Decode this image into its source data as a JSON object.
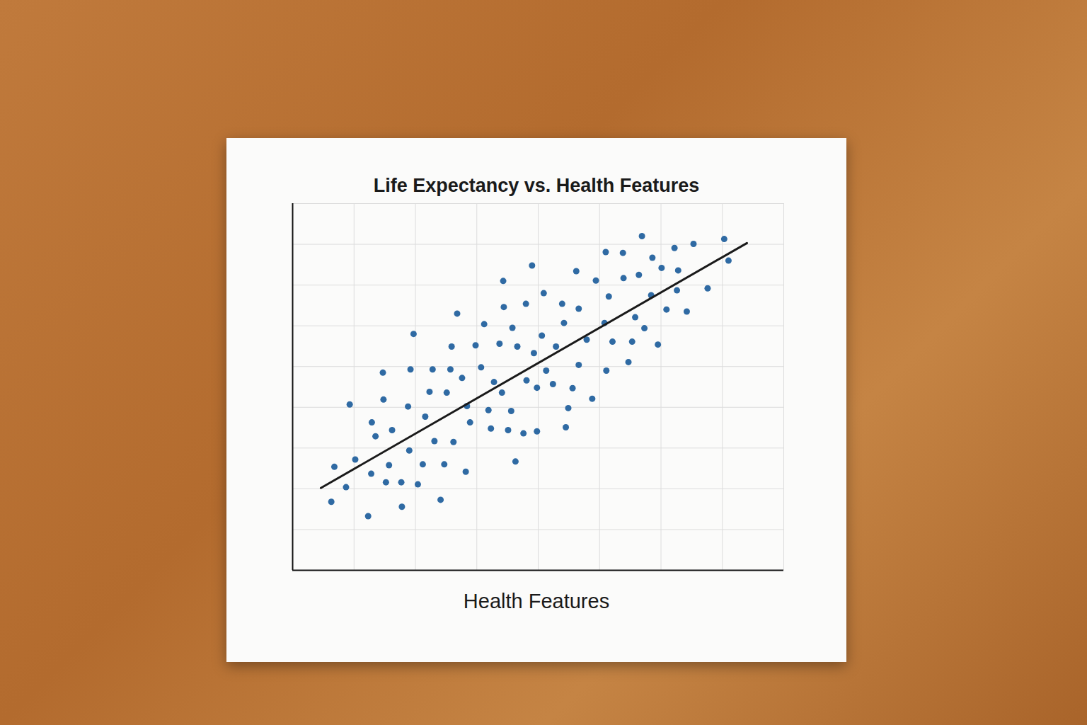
{
  "chart_data": {
    "type": "scatter",
    "title": "Life Expectancy vs. Health Features",
    "x_label": "Health Features",
    "x": [
      0.68,
      0.63,
      0.87,
      0.93,
      1.02,
      1.23,
      1.28,
      1.29,
      1.35,
      1.47,
      1.48,
      1.52,
      1.57,
      1.62,
      1.78,
      1.77,
      1.88,
      1.9,
      1.92,
      1.97,
      2.04,
      2.12,
      2.16,
      2.23,
      2.28,
      2.31,
      2.41,
      2.47,
      2.51,
      2.57,
      2.59,
      2.62,
      2.68,
      2.76,
      2.82,
      2.84,
      2.89,
      2.98,
      3.07,
      3.12,
      3.19,
      3.23,
      3.28,
      3.37,
      3.41,
      3.43,
      3.44,
      3.51,
      3.56,
      3.58,
      3.63,
      3.66,
      3.76,
      3.8,
      3.81,
      3.9,
      3.93,
      3.98,
      3.98,
      4.06,
      4.09,
      4.13,
      4.24,
      4.29,
      4.39,
      4.42,
      4.45,
      4.49,
      4.56,
      4.62,
      4.66,
      4.66,
      4.79,
      4.88,
      4.94,
      5.08,
      5.1,
      5.11,
      5.15,
      5.21,
      5.38,
      5.39,
      5.47,
      5.53,
      5.58,
      5.64,
      5.69,
      5.73,
      5.84,
      5.86,
      5.95,
      6.01,
      6.09,
      6.22,
      6.26,
      6.28,
      6.42,
      6.53,
      6.76,
      7.03,
      7.1
    ],
    "values": [
      2.54,
      1.68,
      2.04,
      4.07,
      2.72,
      1.33,
      2.37,
      3.63,
      3.29,
      4.85,
      4.19,
      2.16,
      2.58,
      3.44,
      1.56,
      2.16,
      4.02,
      2.94,
      4.93,
      5.8,
      2.11,
      2.6,
      3.77,
      4.38,
      4.93,
      3.17,
      1.73,
      2.6,
      4.36,
      4.93,
      5.49,
      3.15,
      6.3,
      4.72,
      2.42,
      4.03,
      3.63,
      5.52,
      4.98,
      6.04,
      3.93,
      3.48,
      4.62,
      5.56,
      4.36,
      7.1,
      6.46,
      3.44,
      3.91,
      5.95,
      2.67,
      5.49,
      3.36,
      6.54,
      4.66,
      7.48,
      5.33,
      4.48,
      3.41,
      5.76,
      6.8,
      4.9,
      4.57,
      5.49,
      6.54,
      6.07,
      3.51,
      3.98,
      4.47,
      7.34,
      6.42,
      5.04,
      5.66,
      4.21,
      7.11,
      6.07,
      7.81,
      4.9,
      6.72,
      5.61,
      7.79,
      7.17,
      5.11,
      5.61,
      6.21,
      7.25,
      8.2,
      5.94,
      6.75,
      7.67,
      5.54,
      7.42,
      6.4,
      7.91,
      6.87,
      7.36,
      6.35,
      8.01,
      6.92,
      8.13,
      7.6
    ],
    "color": "#2f6aa3",
    "trend": {
      "x": [
        0.46,
        7.4
      ],
      "values": [
        2.02,
        8.03
      ],
      "color": "#1a1a1a"
    },
    "xlim": [
      0,
      8
    ],
    "ylim": [
      0,
      9
    ],
    "xticks": [
      0,
      1,
      2,
      3,
      4,
      5,
      6,
      7,
      8
    ],
    "yticks": [
      0,
      1,
      2,
      3,
      4,
      5,
      6,
      7,
      8,
      9
    ],
    "grid": true,
    "tick_labels": false
  }
}
